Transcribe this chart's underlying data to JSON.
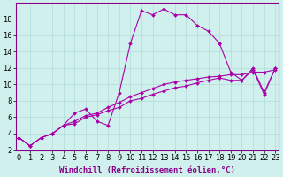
{
  "xlabel": "Windchill (Refroidissement éolien,°C)",
  "bg_color": "#cff0ec",
  "line_color": "#aa00aa",
  "markersize": 2.0,
  "linewidth": 0.8,
  "series1_x": [
    0,
    1,
    2,
    3,
    4,
    5,
    6,
    7,
    8,
    9,
    10,
    11,
    12,
    13,
    14,
    15,
    16,
    17,
    18,
    19,
    20,
    21,
    22,
    23
  ],
  "series1_y": [
    3.5,
    2.5,
    3.5,
    4.0,
    5.0,
    6.5,
    7.0,
    5.5,
    5.0,
    9.0,
    15.0,
    19.0,
    18.5,
    19.2,
    18.5,
    18.5,
    17.2,
    16.5,
    15.0,
    null,
    null,
    null,
    null,
    null
  ],
  "series2_x": [
    0,
    1,
    2,
    3,
    4,
    5,
    6,
    7,
    8,
    9,
    10,
    11,
    12,
    13,
    14,
    15,
    16,
    17,
    18,
    19,
    20,
    21,
    22,
    23
  ],
  "series2_y": [
    3.5,
    2.5,
    3.5,
    4.0,
    5.0,
    5.2,
    6.0,
    6.3,
    6.8,
    7.2,
    8.0,
    8.3,
    8.8,
    9.2,
    9.6,
    9.8,
    10.2,
    10.5,
    10.8,
    10.5,
    10.5,
    11.8,
    8.8,
    12.0
  ],
  "series3_x": [
    0,
    1,
    2,
    3,
    4,
    5,
    6,
    7,
    8,
    9,
    10,
    11,
    12,
    13,
    14,
    15,
    16,
    17,
    18,
    19,
    20,
    21,
    22,
    23
  ],
  "series3_y": [
    3.5,
    2.5,
    3.5,
    4.0,
    5.0,
    5.5,
    6.2,
    6.5,
    7.2,
    7.8,
    8.5,
    9.0,
    9.5,
    10.0,
    10.3,
    10.5,
    10.7,
    10.9,
    11.0,
    11.2,
    11.2,
    11.5,
    11.5,
    11.8
  ],
  "series4_x": [
    18,
    19,
    20,
    21,
    22,
    23
  ],
  "series4_y": [
    15.0,
    11.5,
    10.5,
    12.0,
    9.0,
    12.0
  ],
  "xlim": [
    0,
    23
  ],
  "ylim": [
    2,
    20
  ],
  "yticks": [
    2,
    4,
    6,
    8,
    10,
    12,
    14,
    16,
    18
  ],
  "xticks": [
    0,
    1,
    2,
    3,
    4,
    5,
    6,
    7,
    8,
    9,
    10,
    11,
    12,
    13,
    14,
    15,
    16,
    17,
    18,
    19,
    20,
    21,
    22,
    23
  ],
  "grid_color": "#b0ddd8",
  "xlabel_fontsize": 6.5,
  "tick_fontsize": 6.0,
  "spine_color": "#880088"
}
